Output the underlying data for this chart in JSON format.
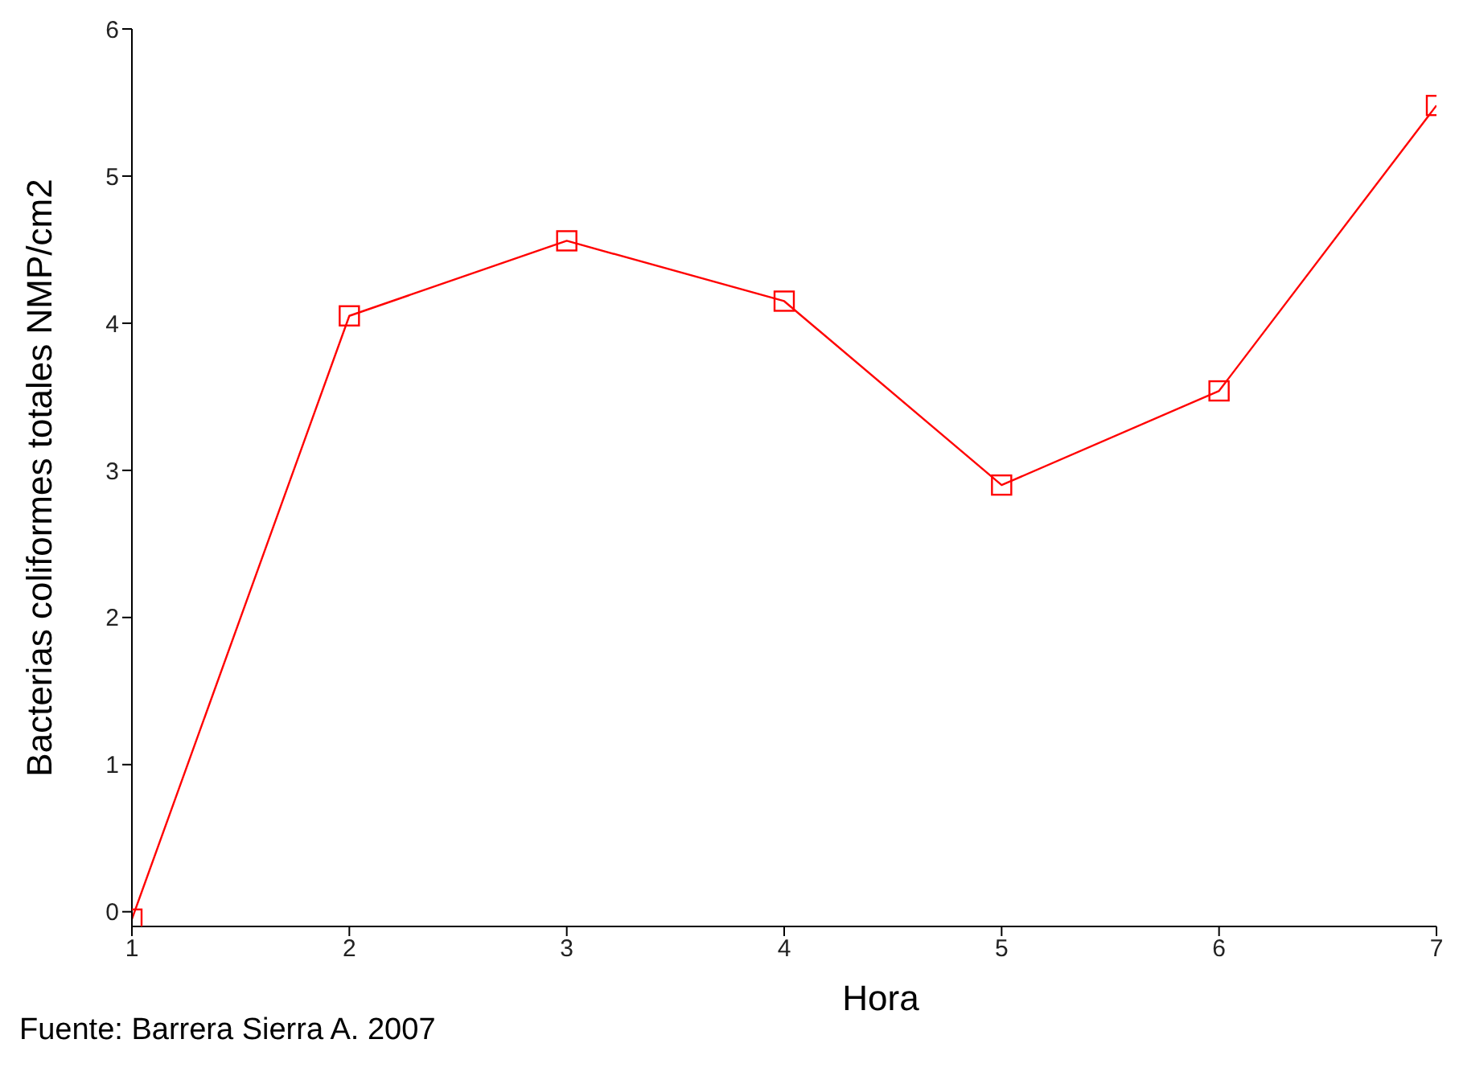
{
  "chart_data": {
    "type": "line",
    "xlabel": "Hora",
    "ylabel": "Bacterias coliformes totales NMP/cm2",
    "annotations": [
      "Fuente: Barrera Sierra A. 2007"
    ],
    "x": [
      1,
      2,
      3,
      4,
      5,
      6,
      7
    ],
    "series": [
      {
        "color": "#ff0000",
        "values": [
          -0.05,
          4.05,
          4.56,
          4.15,
          2.9,
          3.54,
          5.48
        ]
      }
    ],
    "xlim": [
      1,
      7
    ],
    "xticks": [
      1,
      2,
      3,
      4,
      5,
      6,
      7
    ],
    "ylim": [
      -0.1,
      6
    ],
    "yticks": [
      0,
      1,
      2,
      3,
      4,
      5,
      6
    ],
    "marker": "square",
    "line_style": "solid",
    "legend": false
  }
}
